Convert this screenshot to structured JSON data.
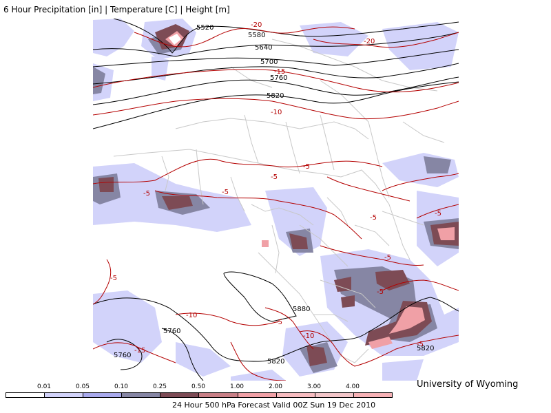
{
  "title": "6 Hour Precipitation [in] | Temperature [C] | Height [m]",
  "credit": "University of Wyoming",
  "footer": "24 Hour 500 hPa Forecast Valid 00Z Sun 19 Dec 2010",
  "legend": {
    "labels": [
      "0.01",
      "0.05",
      "0.10",
      "0.25",
      "0.50",
      "1.00",
      "2.00",
      "3.00",
      "4.00"
    ],
    "colors": [
      "#ffffff",
      "#d2d3fa",
      "#a8a9ec",
      "#8686a4",
      "#7d4b55",
      "#c87f86",
      "#f0a0a6",
      "#f7bcc0",
      "#f3c6c9",
      "#f6b1b5"
    ]
  },
  "colors": {
    "height_contour": "#000000",
    "temperature_contour": "#b40000",
    "borders": "#c8c8c8"
  },
  "height_labels": [
    "5520",
    "5580",
    "5640",
    "5700",
    "5760",
    "5820",
    "5880",
    "5760",
    "5760",
    "5820"
  ],
  "temperature_labels": [
    "-20",
    "-20",
    "-15",
    "-10",
    "-5",
    "-5",
    "-5",
    "-5",
    "-5",
    "-5",
    "-5",
    "-5",
    "-5",
    "-10",
    "-10",
    "-15",
    "-5"
  ]
}
